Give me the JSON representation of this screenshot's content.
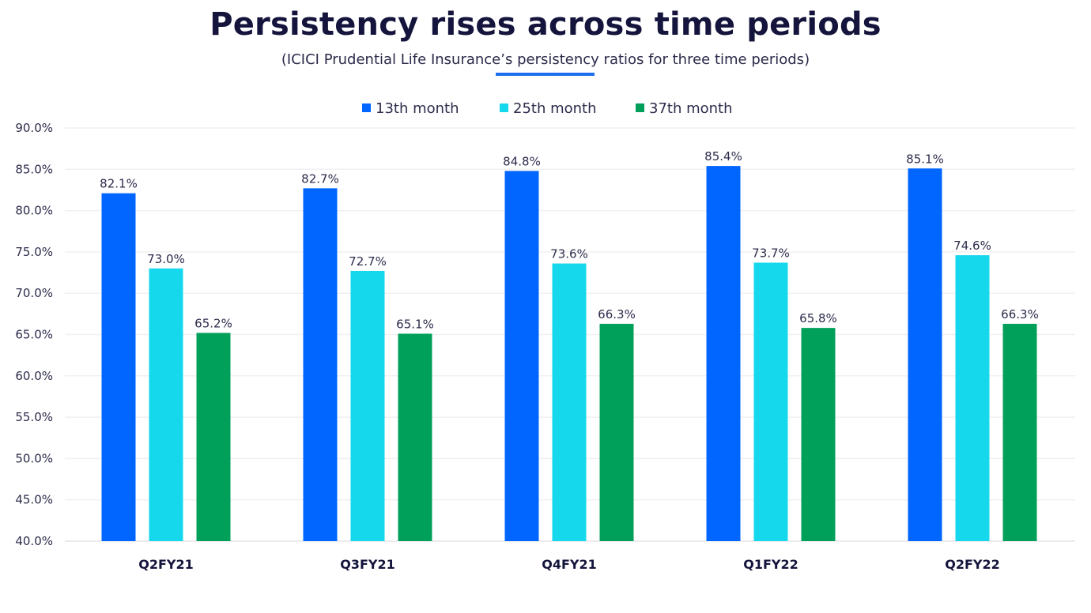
{
  "header": {
    "title": "Persistency rises across time periods",
    "subtitle": "(ICICI Prudential Life Insurance’s persistency ratios for three time periods)",
    "accent_color": "#1e6ff0"
  },
  "chart_data": {
    "type": "bar",
    "title": "Persistency rises across time periods",
    "subtitle": "(ICICI Prudential Life Insurance’s persistency ratios for three time periods)",
    "xlabel": "",
    "ylabel": "",
    "categories": [
      "Q2FY21",
      "Q3FY21",
      "Q4FY21",
      "Q1FY22",
      "Q2FY22"
    ],
    "series": [
      {
        "name": "13th month",
        "color": "#0066ff",
        "values": [
          82.1,
          82.7,
          84.8,
          85.4,
          85.1
        ]
      },
      {
        "name": "25th month",
        "color": "#16d8ec",
        "values": [
          73.0,
          72.7,
          73.6,
          73.7,
          74.6
        ]
      },
      {
        "name": "37th month",
        "color": "#00a05a",
        "values": [
          65.2,
          65.1,
          66.3,
          65.8,
          66.3
        ]
      }
    ],
    "data_labels": [
      [
        "82.1%",
        "82.7%",
        "84.8%",
        "85.4%",
        "85.1%"
      ],
      [
        "73.0%",
        "72.7%",
        "73.6%",
        "73.7%",
        "74.6%"
      ],
      [
        "65.2%",
        "65.1%",
        "66.3%",
        "65.8%",
        "66.3%"
      ]
    ],
    "ylim": [
      40,
      90
    ],
    "yticks": [
      40,
      45,
      50,
      55,
      60,
      65,
      70,
      75,
      80,
      85,
      90
    ],
    "ytick_labels": [
      "40.0%",
      "45.0%",
      "50.0%",
      "55.0%",
      "60.0%",
      "65.0%",
      "70.0%",
      "75.0%",
      "80.0%",
      "85.0%",
      "90.0%"
    ],
    "grid": true,
    "legend_position": "top-center"
  }
}
